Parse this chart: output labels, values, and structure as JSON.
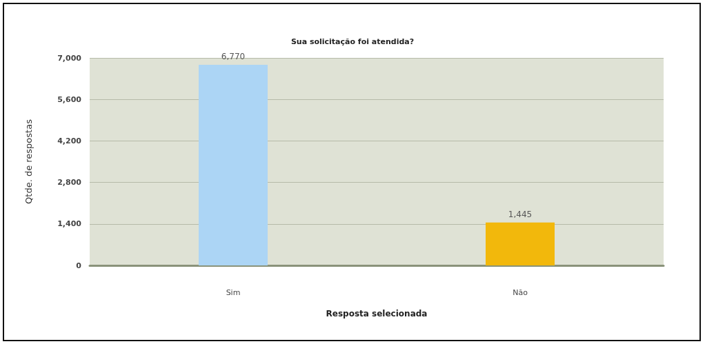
{
  "chart_data": {
    "type": "bar",
    "title": "Sua solicitação foi atendida?",
    "xlabel": "Resposta selecionada",
    "ylabel": "Qtde. de respostas",
    "categories": [
      "Sim",
      "Não"
    ],
    "values": [
      6770,
      1445
    ],
    "colors": [
      "#acd5f5",
      "#f2b80c"
    ],
    "value_labels": [
      "6,770",
      "1,445"
    ],
    "ylim": [
      0,
      7000
    ],
    "yticks": [
      0,
      {
        "value": 1400,
        "label": "1,400"
      },
      {
        "value": 2800,
        "label": "2,800"
      },
      {
        "value": 4200,
        "label": "4,200"
      },
      {
        "value": 5600,
        "label": "5,600"
      },
      {
        "value": 7000,
        "label": "7,000"
      }
    ],
    "grid": "y"
  }
}
